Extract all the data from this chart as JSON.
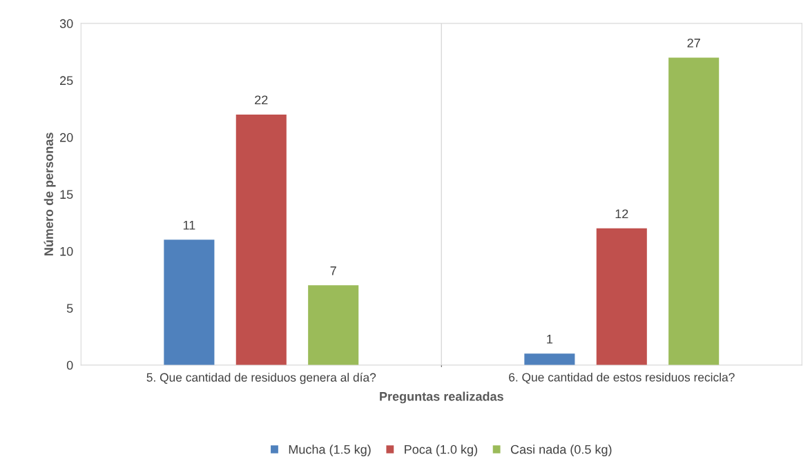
{
  "chart_data": {
    "type": "bar",
    "xlabel": "Preguntas realizadas",
    "ylabel": "Número de personas",
    "categories": [
      "5. Que cantidad de residuos genera al día?",
      "6. Que cantidad de estos residuos recicla?"
    ],
    "series": [
      {
        "name": "Mucha (1.5 kg)",
        "color": "#4f81bd",
        "values": [
          11,
          1
        ]
      },
      {
        "name": "Poca (1.0 kg)",
        "color": "#c0504d",
        "values": [
          22,
          12
        ]
      },
      {
        "name": "Casi nada (0.5 kg)",
        "color": "#9bbb59",
        "values": [
          7,
          27
        ]
      }
    ],
    "ylim": [
      0,
      30
    ],
    "yticks": [
      0,
      5,
      10,
      15,
      20,
      25,
      30
    ],
    "grid": "x",
    "legend": "bottom",
    "data_labels": true
  }
}
